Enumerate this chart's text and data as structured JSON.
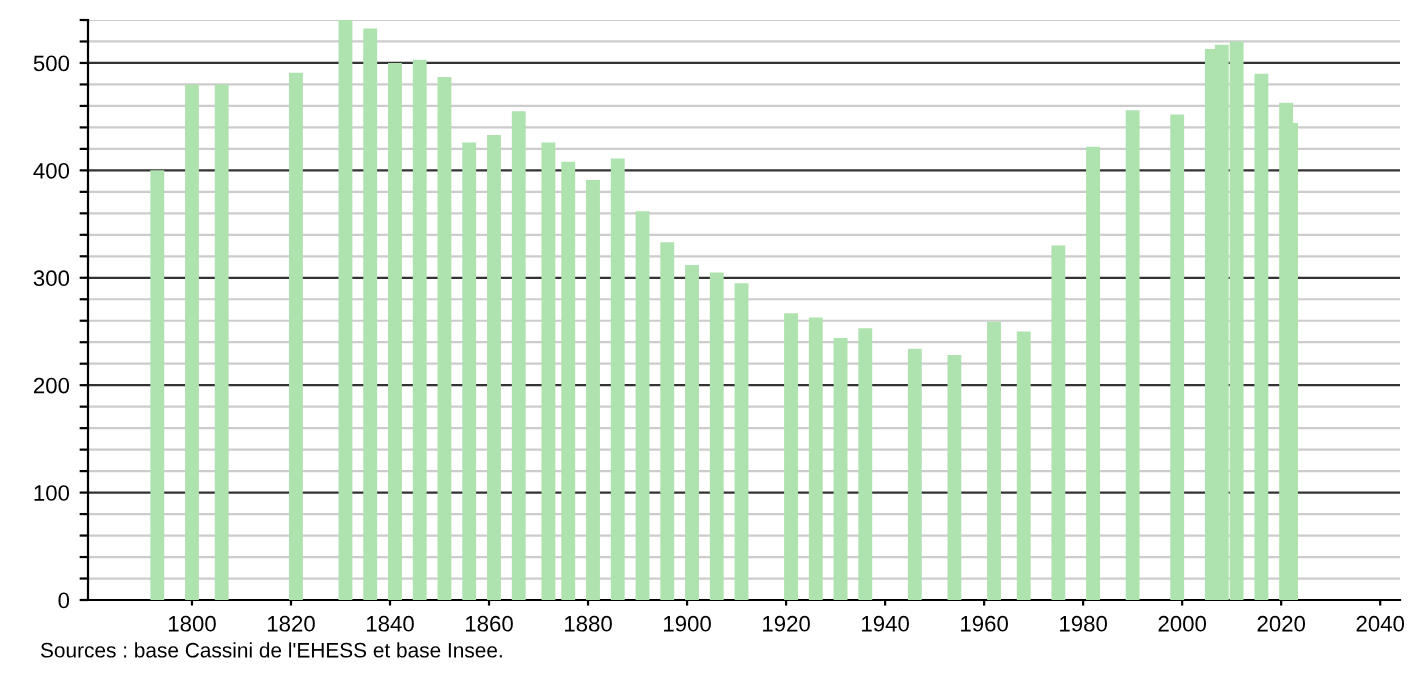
{
  "chart_data": {
    "type": "bar",
    "x": [
      1793,
      1800,
      1806,
      1821,
      1831,
      1836,
      1841,
      1846,
      1851,
      1856,
      1861,
      1866,
      1872,
      1876,
      1881,
      1886,
      1891,
      1896,
      1901,
      1906,
      1911,
      1921,
      1926,
      1931,
      1936,
      1946,
      1954,
      1962,
      1968,
      1975,
      1982,
      1990,
      1999,
      2006,
      2008,
      2011,
      2016,
      2021,
      2022
    ],
    "values": [
      400,
      480,
      480,
      491,
      540,
      532,
      500,
      503,
      487,
      426,
      433,
      455,
      426,
      408,
      391,
      411,
      362,
      333,
      312,
      305,
      295,
      267,
      263,
      244,
      253,
      234,
      228,
      259,
      250,
      330,
      422,
      456,
      452,
      513,
      517,
      520,
      490,
      463,
      444
    ],
    "color": "#aee2ae",
    "xlim": [
      1779,
      2044
    ],
    "xticks": [
      1800,
      1820,
      1840,
      1860,
      1880,
      1900,
      1920,
      1940,
      1960,
      1980,
      2000,
      2020,
      2040
    ],
    "ylim": [
      0,
      540
    ],
    "yticks": [
      0,
      {
        "value": 20,
        "label": null
      },
      {
        "value": 40,
        "label": null
      },
      {
        "value": 60,
        "label": null
      },
      {
        "value": 80,
        "label": null
      },
      100,
      {
        "value": 120,
        "label": null
      },
      {
        "value": 140,
        "label": null
      },
      {
        "value": 160,
        "label": null
      },
      {
        "value": 180,
        "label": null
      },
      200,
      {
        "value": 220,
        "label": null
      },
      {
        "value": 240,
        "label": null
      },
      {
        "value": 260,
        "label": null
      },
      {
        "value": 280,
        "label": null
      },
      300,
      {
        "value": 320,
        "label": null
      },
      {
        "value": 340,
        "label": null
      },
      {
        "value": 360,
        "label": null
      },
      {
        "value": 380,
        "label": null
      },
      400,
      {
        "value": 420,
        "label": null
      },
      {
        "value": 440,
        "label": null
      },
      {
        "value": 460,
        "label": null
      },
      {
        "value": 480,
        "label": null
      },
      500,
      {
        "value": 520,
        "label": null
      },
      {
        "value": 540,
        "label": null
      }
    ],
    "grid": "y",
    "annotations": [
      "Sources : base Cassini de l'EHESS et base Insee."
    ]
  }
}
